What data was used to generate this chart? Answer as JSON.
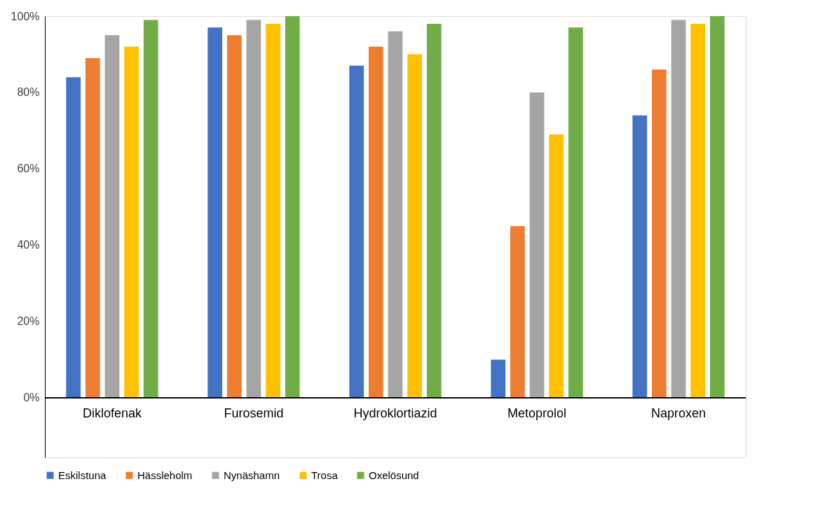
{
  "chart_data": {
    "type": "bar",
    "categories": [
      "Diklofenak",
      "Furosemid",
      "Hydroklortiazid",
      "Metoprolol",
      "Naproxen"
    ],
    "series": [
      {
        "name": "Eskilstuna",
        "color": "#4472c4",
        "values": [
          84,
          97,
          87,
          10,
          74
        ]
      },
      {
        "name": "Hässleholm",
        "color": "#ed7d31",
        "values": [
          89,
          95,
          92,
          45,
          86
        ]
      },
      {
        "name": "Nynäshamn",
        "color": "#a5a5a5",
        "values": [
          95,
          99,
          96,
          80,
          99
        ]
      },
      {
        "name": "Trosa",
        "color": "#ffc000",
        "values": [
          92,
          98,
          90,
          69,
          98
        ]
      },
      {
        "name": "Oxelösund",
        "color": "#70ad47",
        "values": [
          99,
          100,
          98,
          97,
          100
        ]
      }
    ],
    "ylim": [
      -15.6,
      100
    ],
    "yticks": [
      {
        "value": 0,
        "label": "0%"
      },
      {
        "value": 20,
        "label": "20%"
      },
      {
        "value": 40,
        "label": "40%"
      },
      {
        "value": 60,
        "label": "60%"
      },
      {
        "value": 80,
        "label": "80%"
      },
      {
        "value": 100,
        "label": "100%"
      }
    ],
    "grid": false,
    "legend": "bottom"
  }
}
